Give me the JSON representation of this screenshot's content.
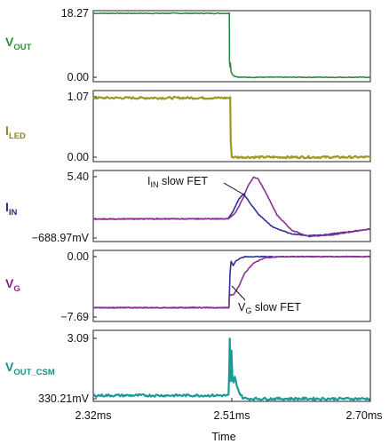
{
  "chart_data": {
    "type": "line",
    "xlabel": "Time",
    "x_ticks": [
      "2.32ms",
      "2.51ms",
      "2.70ms"
    ],
    "xlim_ms": [
      2.32,
      2.7
    ],
    "panels": [
      {
        "name": "vout",
        "label_main": "V",
        "label_sub": "OUT",
        "label_color": "#2e8b3a",
        "yticks": [
          "18.27",
          "0.00"
        ],
        "ylim": [
          0.0,
          18.27
        ],
        "series": [
          {
            "color": "#2e8b3a",
            "x": [
              2.32,
              2.5066,
              2.5068,
              2.5075,
              2.508,
              2.509,
              2.511,
              2.514,
              2.52,
              2.7
            ],
            "y": [
              18.27,
              18.27,
              4.5,
              3.0,
              4.2,
              1.6,
              0.8,
              0.3,
              0.0,
              0.0
            ]
          }
        ]
      },
      {
        "name": "iled",
        "label_main": "I",
        "label_sub": "LED",
        "label_color": "#8b8a1e",
        "yticks": [
          "1.07",
          "0.00"
        ],
        "ylim": [
          0.0,
          1.07
        ],
        "series": [
          {
            "color": "#9a9a22",
            "noise": 0.035,
            "x": [
              2.32,
              2.5078,
              2.5085,
              2.51,
              2.7
            ],
            "y": [
              1.05,
              1.05,
              0.3,
              0.0,
              0.0
            ]
          }
        ]
      },
      {
        "name": "iin",
        "label_main": "I",
        "label_sub": "IN",
        "label_color": "#2a2a8a",
        "yticks": [
          "5.40",
          "−688.97mV"
        ],
        "ylim": [
          -0.68897,
          5.4
        ],
        "annotation": {
          "main": "I",
          "sub": "IN",
          "rest": " slow FET"
        },
        "series": [
          {
            "color": "#2f2f9a",
            "x": [
              2.32,
              2.505,
              2.512,
              2.52,
              2.526,
              2.534,
              2.546,
              2.566,
              2.59,
              2.614,
              2.64,
              2.7
            ],
            "y": [
              1.2,
              1.22,
              2.0,
              3.2,
              3.7,
              2.9,
              1.7,
              0.4,
              -0.25,
              -0.45,
              -0.35,
              0.2
            ]
          },
          {
            "color": "#8a2f92",
            "x": [
              2.32,
              2.505,
              2.515,
              2.525,
              2.533,
              2.54,
              2.546,
              2.556,
              2.572,
              2.592,
              2.616,
              2.645,
              2.7
            ],
            "y": [
              1.2,
              1.22,
              1.8,
              3.2,
              4.6,
              5.35,
              5.2,
              3.9,
              1.6,
              0.1,
              -0.55,
              -0.4,
              0.2
            ]
          }
        ]
      },
      {
        "name": "vg",
        "label_main": "V",
        "label_sub": "G",
        "label_color": "#8a1e8f",
        "yticks": [
          "0.00",
          "−7.69"
        ],
        "ylim": [
          -7.69,
          0.0
        ],
        "annotation": {
          "main": "V",
          "sub": "G",
          "rest": " slow FET"
        },
        "series": [
          {
            "color": "#2f2f9a",
            "x": [
              2.32,
              2.506,
              2.5066,
              2.5075,
              2.509,
              2.512,
              2.516,
              2.522,
              2.528,
              2.54,
              2.56,
              2.7
            ],
            "y": [
              -6.5,
              -6.5,
              -5.0,
              -2.2,
              -0.6,
              -1.1,
              -0.5,
              -0.2,
              -0.02,
              0.0,
              0.0,
              0.0
            ]
          },
          {
            "color": "#8a2f92",
            "x": [
              2.32,
              2.506,
              2.5068,
              2.509,
              2.512,
              2.517,
              2.521,
              2.527,
              2.54,
              2.555,
              2.58,
              2.7
            ],
            "y": [
              -6.5,
              -6.5,
              -5.1,
              -4.8,
              -4.9,
              -4.2,
              -3.5,
              -2.2,
              -0.8,
              -0.15,
              0.0,
              0.0
            ]
          }
        ]
      },
      {
        "name": "vout_csm",
        "label_main": "V",
        "label_sub": "OUT_CSM",
        "label_color": "#1a8c86",
        "yticks": [
          "3.09",
          "330.21mV"
        ],
        "ylim": [
          0.33021,
          3.09
        ],
        "series": [
          {
            "color": "#1a9a94",
            "noise": 0.04,
            "x": [
              2.32,
              2.5055,
              2.5065,
              2.5072,
              2.5085,
              2.5095,
              2.511,
              2.5125,
              2.514,
              2.517,
              2.52,
              2.525,
              2.53,
              2.7
            ],
            "y": [
              0.48,
              0.48,
              1.6,
              3.05,
              1.1,
              2.5,
              1.2,
              1.05,
              1.3,
              0.95,
              0.62,
              0.38,
              0.33,
              0.33
            ]
          }
        ]
      }
    ]
  }
}
